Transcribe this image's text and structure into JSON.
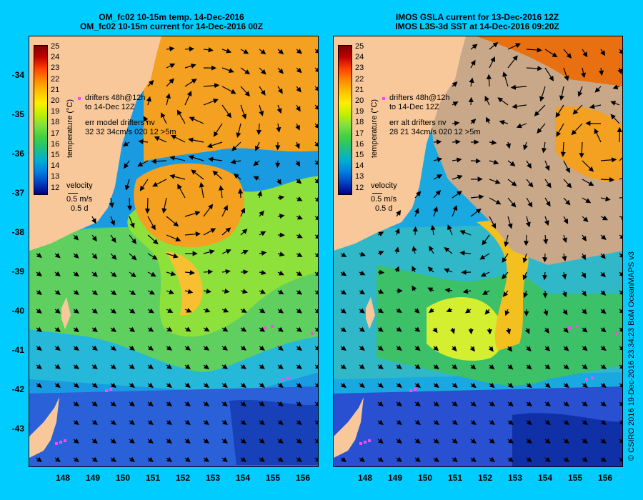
{
  "left_panel": {
    "title_line1": "OM_fc02 10-15m temp. 14-Dec-2016",
    "title_line2": "OM_fc02 10-15m current for 14-Dec-2016 00Z",
    "drifters_line1": "drifters 48h@12h",
    "drifters_line2": "to 14-Dec 12Z",
    "err_line1": "err model drifters nv",
    "err_line2": "32 32 34cm/s 020 12 >5m",
    "velocity_label": "velocity",
    "velocity_speed": "0.5 m/s",
    "velocity_duration": "0.5 d",
    "colorbar_title": "temperature (°C)"
  },
  "right_panel": {
    "title_line1": "IMOS GSLA current for 13-Dec-2016 12Z",
    "title_line2": "IMOS L3S-3d SST at 14-Dec-2016 09:20Z",
    "drifters_line1": "drifters 48h@12h",
    "drifters_line2": "to 14-Dec 12Z",
    "err_line1": "err alt drifters nv",
    "err_line2": "28 21 34cm/s 020 12 >5m",
    "velocity_label": "velocity",
    "velocity_speed": "0.5 m/s",
    "velocity_duration": "0.5 d",
    "colorbar_title": "temperature (°C)"
  },
  "colorbar_ticks": [
    "25",
    "24",
    "23",
    "22",
    "21",
    "20",
    "19",
    "18",
    "17",
    "16",
    "15",
    "14",
    "13",
    "12"
  ],
  "lat_ticks": [
    "-34",
    "-35",
    "-36",
    "-37",
    "-38",
    "-39",
    "-40",
    "-41",
    "-42",
    "-43"
  ],
  "lon_ticks": [
    "148",
    "149",
    "150",
    "151",
    "152",
    "153",
    "154",
    "155",
    "156"
  ],
  "credit": "© CSIRO 2016   19-Dec-2016 23:34:23 BoM OceanMAPS v3",
  "colors": {
    "background": "#00ccff",
    "land": "#f8c89a",
    "cloud": "#c8a888",
    "drifter": "#ff44ff"
  }
}
